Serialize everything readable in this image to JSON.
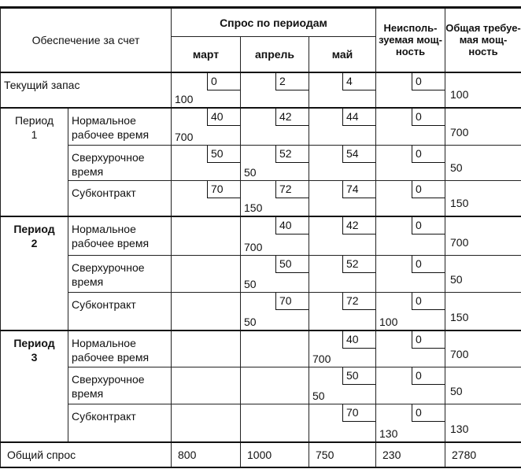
{
  "header": {
    "supply_source": "Обеспечение за счет",
    "demand_by_period": "Спрос по периодам",
    "months": [
      "март",
      "апрель",
      "май"
    ],
    "unused_capacity": "Неисполь-зуемая мощ-ность",
    "total_capacity": "Общая требуе-мая мощ-ность"
  },
  "current_stock": {
    "label": "Текущий запас",
    "cells": [
      {
        "cost": "0",
        "alloc": "100"
      },
      {
        "cost": "2",
        "alloc": ""
      },
      {
        "cost": "4",
        "alloc": ""
      },
      {
        "cost": "0",
        "alloc": ""
      }
    ],
    "total": "100"
  },
  "periods": [
    {
      "label": "Период 1",
      "rows": [
        {
          "label": "Нормальное рабочее время",
          "cells": [
            {
              "cost": "40",
              "alloc": "700"
            },
            {
              "cost": "42",
              "alloc": ""
            },
            {
              "cost": "44",
              "alloc": ""
            },
            {
              "cost": "0",
              "alloc": ""
            }
          ],
          "total": "700"
        },
        {
          "label": "Сверхурочное время",
          "cells": [
            {
              "cost": "50",
              "alloc": ""
            },
            {
              "cost": "52",
              "alloc": "50"
            },
            {
              "cost": "54",
              "alloc": ""
            },
            {
              "cost": "0",
              "alloc": ""
            }
          ],
          "total": "50"
        },
        {
          "label": "Субконтракт",
          "cells": [
            {
              "cost": "70",
              "alloc": ""
            },
            {
              "cost": "72",
              "alloc": "150"
            },
            {
              "cost": "74",
              "alloc": ""
            },
            {
              "cost": "0",
              "alloc": ""
            }
          ],
          "total": "150"
        }
      ]
    },
    {
      "label": "Период 2",
      "rows": [
        {
          "label": "Нормальное рабочее время",
          "cells": [
            null,
            {
              "cost": "40",
              "alloc": "700"
            },
            {
              "cost": "42",
              "alloc": ""
            },
            {
              "cost": "0",
              "alloc": ""
            }
          ],
          "total": "700"
        },
        {
          "label": "Сверхурочное время",
          "cells": [
            null,
            {
              "cost": "50",
              "alloc": "50"
            },
            {
              "cost": "52",
              "alloc": ""
            },
            {
              "cost": "0",
              "alloc": ""
            }
          ],
          "total": "50"
        },
        {
          "label": "Субконтракт",
          "cells": [
            null,
            {
              "cost": "70",
              "alloc": "50"
            },
            {
              "cost": "72",
              "alloc": ""
            },
            {
              "cost": "0",
              "alloc": "100"
            }
          ],
          "total": "150"
        }
      ]
    },
    {
      "label": "Период 3",
      "rows": [
        {
          "label": "Нормальное рабочее время",
          "cells": [
            null,
            null,
            {
              "cost": "40",
              "alloc": "700"
            },
            {
              "cost": "0",
              "alloc": ""
            }
          ],
          "total": "700"
        },
        {
          "label": "Сверхурочное время",
          "cells": [
            null,
            null,
            {
              "cost": "50",
              "alloc": "50"
            },
            {
              "cost": "0",
              "alloc": ""
            }
          ],
          "total": "50"
        },
        {
          "label": "Субконтракт",
          "cells": [
            null,
            null,
            {
              "cost": "70",
              "alloc": ""
            },
            {
              "cost": "0",
              "alloc": "130"
            }
          ],
          "total": "130"
        }
      ]
    }
  ],
  "total_demand": {
    "label": "Общий спрос",
    "values": [
      "800",
      "1000",
      "750",
      "230",
      "2780"
    ]
  }
}
